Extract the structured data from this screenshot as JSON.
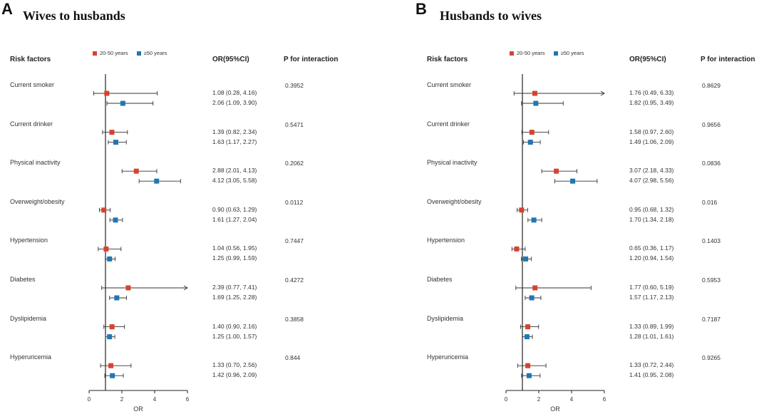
{
  "colors": {
    "group1": "#d6432f",
    "group2": "#1f77b4",
    "axis": "#222222",
    "whisker": "#333333"
  },
  "chart_data": [
    {
      "type": "forest",
      "panel_letter": "A",
      "title": "Wives to husbands",
      "col_headers": {
        "risk": "Risk factors",
        "or": "OR(95%CI)",
        "p": "P for interaction"
      },
      "legend": [
        "20-50 years",
        "≥50 years"
      ],
      "xlabel": "OR",
      "xlim": [
        0,
        6
      ],
      "xticks": [
        "0",
        "2",
        "4",
        "6"
      ],
      "ref_line": 1,
      "rows": [
        {
          "factor": "Current smoker",
          "p": "0.3952",
          "g1": {
            "or": 1.08,
            "lo": 0.28,
            "hi": 4.16,
            "text": "1.08 (0.28, 4.16)"
          },
          "g2": {
            "or": 2.06,
            "lo": 1.09,
            "hi": 3.9,
            "text": "2.06 (1.09, 3.90)"
          }
        },
        {
          "factor": "Current drinker",
          "p": "0.5471",
          "g1": {
            "or": 1.39,
            "lo": 0.82,
            "hi": 2.34,
            "text": "1.39 (0.82, 2.34)"
          },
          "g2": {
            "or": 1.63,
            "lo": 1.17,
            "hi": 2.27,
            "text": "1.63 (1.17, 2.27)"
          }
        },
        {
          "factor": "Physical inactivity",
          "p": "0.2062",
          "g1": {
            "or": 2.88,
            "lo": 2.01,
            "hi": 4.13,
            "text": "2.88 (2.01, 4.13)"
          },
          "g2": {
            "or": 4.12,
            "lo": 3.05,
            "hi": 5.58,
            "text": "4.12 (3.05, 5.58)"
          }
        },
        {
          "factor": "Overweight/obesity",
          "p": "0.0112",
          "g1": {
            "or": 0.9,
            "lo": 0.63,
            "hi": 1.29,
            "text": "0.90 (0.63, 1.29)"
          },
          "g2": {
            "or": 1.61,
            "lo": 1.27,
            "hi": 2.04,
            "text": "1.61 (1.27, 2.04)"
          }
        },
        {
          "factor": "Hypertension",
          "p": "0.7447",
          "g1": {
            "or": 1.04,
            "lo": 0.56,
            "hi": 1.95,
            "text": "1.04 (0.56, 1.95)"
          },
          "g2": {
            "or": 1.25,
            "lo": 0.99,
            "hi": 1.59,
            "text": "1.25 (0.99, 1.59)"
          }
        },
        {
          "factor": "Diabetes",
          "p": "0.4272",
          "g1": {
            "or": 2.39,
            "lo": 0.77,
            "hi": 7.41,
            "text": "2.39 (0.77, 7.41)"
          },
          "g2": {
            "or": 1.69,
            "lo": 1.25,
            "hi": 2.28,
            "text": "1.69 (1.25, 2.28)"
          }
        },
        {
          "factor": "Dyslipidemia",
          "p": "0.3858",
          "g1": {
            "or": 1.4,
            "lo": 0.9,
            "hi": 2.16,
            "text": "1.40 (0.90, 2.16)"
          },
          "g2": {
            "or": 1.25,
            "lo": 1.0,
            "hi": 1.57,
            "text": "1.25 (1.00, 1.57)"
          }
        },
        {
          "factor": "Hyperuricemia",
          "p": "0.844",
          "g1": {
            "or": 1.33,
            "lo": 0.7,
            "hi": 2.56,
            "text": "1.33 (0.70, 2.56)"
          },
          "g2": {
            "or": 1.42,
            "lo": 0.96,
            "hi": 2.09,
            "text": "1.42 (0.96, 2.09)"
          }
        }
      ]
    },
    {
      "type": "forest",
      "panel_letter": "B",
      "title": "Husbands to wives",
      "col_headers": {
        "risk": "Risk factors",
        "or": "OR(95%CI)",
        "p": "P for interaction"
      },
      "legend": [
        "20-50 years",
        "≥50 years"
      ],
      "xlabel": "OR",
      "xlim": [
        0,
        6
      ],
      "xticks": [
        "0",
        "2",
        "4",
        "6"
      ],
      "ref_line": 1,
      "rows": [
        {
          "factor": "Current smoker",
          "p": "0.8629",
          "g1": {
            "or": 1.76,
            "lo": 0.49,
            "hi": 6.33,
            "text": "1.76 (0.49, 6.33)"
          },
          "g2": {
            "or": 1.82,
            "lo": 0.95,
            "hi": 3.49,
            "text": "1.82 (0.95, 3.49)"
          }
        },
        {
          "factor": "Current drinker",
          "p": "0.9656",
          "g1": {
            "or": 1.58,
            "lo": 0.97,
            "hi": 2.6,
            "text": "1.58 (0.97, 2.60)"
          },
          "g2": {
            "or": 1.49,
            "lo": 1.06,
            "hi": 2.09,
            "text": "1.49 (1.06, 2.09)"
          }
        },
        {
          "factor": "Physical inactivity",
          "p": "0.0836",
          "g1": {
            "or": 3.07,
            "lo": 2.18,
            "hi": 4.33,
            "text": "3.07 (2.18, 4.33)"
          },
          "g2": {
            "or": 4.07,
            "lo": 2.98,
            "hi": 5.56,
            "text": "4.07 (2.98, 5.56)"
          }
        },
        {
          "factor": "Overweight/obesity",
          "p": "0.016",
          "g1": {
            "or": 0.95,
            "lo": 0.68,
            "hi": 1.32,
            "text": "0.95 (0.68, 1.32)"
          },
          "g2": {
            "or": 1.7,
            "lo": 1.34,
            "hi": 2.18,
            "text": "1.70 (1.34, 2.18)"
          }
        },
        {
          "factor": "Hypertension",
          "p": "0.1403",
          "g1": {
            "or": 0.65,
            "lo": 0.36,
            "hi": 1.17,
            "text": "0.65 (0.36, 1.17)"
          },
          "g2": {
            "or": 1.2,
            "lo": 0.94,
            "hi": 1.54,
            "text": "1.20 (0.94, 1.54)"
          }
        },
        {
          "factor": "Diabetes",
          "p": "0.5953",
          "g1": {
            "or": 1.77,
            "lo": 0.6,
            "hi": 5.19,
            "text": "1.77 (0.60, 5.19)"
          },
          "g2": {
            "or": 1.57,
            "lo": 1.17,
            "hi": 2.13,
            "text": "1.57 (1.17, 2.13)"
          }
        },
        {
          "factor": "Dyslipidemia",
          "p": "0.7187",
          "g1": {
            "or": 1.33,
            "lo": 0.89,
            "hi": 1.99,
            "text": "1.33 (0.89, 1.99)"
          },
          "g2": {
            "or": 1.28,
            "lo": 1.01,
            "hi": 1.61,
            "text": "1.28 (1.01, 1.61)"
          }
        },
        {
          "factor": "Hyperuricemia",
          "p": "0.9265",
          "g1": {
            "or": 1.33,
            "lo": 0.72,
            "hi": 2.44,
            "text": "1.33 (0.72, 2.44)"
          },
          "g2": {
            "or": 1.41,
            "lo": 0.95,
            "hi": 2.08,
            "text": "1.41 (0.95, 2.08)"
          }
        }
      ]
    }
  ]
}
